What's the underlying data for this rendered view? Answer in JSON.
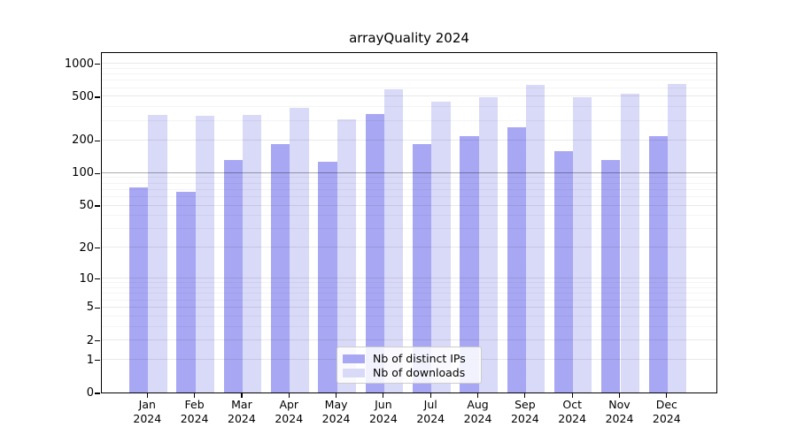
{
  "title": "arrayQuality 2024",
  "colors": {
    "distinct_ips": "#a7a7f3",
    "downloads": "#d9d9f8",
    "grid_minor": "rgba(0,0,0,0.045)",
    "grid_major": "rgba(0,0,0,0.085)",
    "grid_hundred": "rgba(0,0,0,0.32)",
    "axis": "#000000"
  },
  "legend": {
    "items": [
      {
        "label": "Nb of distinct IPs"
      },
      {
        "label": "Nb of downloads"
      }
    ]
  },
  "chart_data": {
    "type": "bar",
    "title": "arrayQuality 2024",
    "categories": [
      "Jan 2024",
      "Feb 2024",
      "Mar 2024",
      "Apr 2024",
      "May 2024",
      "Jun 2024",
      "Jul 2024",
      "Aug 2024",
      "Sep 2024",
      "Oct 2024",
      "Nov 2024",
      "Dec 2024"
    ],
    "series": [
      {
        "name": "Nb of distinct IPs",
        "color": "#a7a7f3",
        "values": [
          73,
          67,
          130,
          184,
          125,
          342,
          184,
          216,
          260,
          157,
          130,
          216
        ]
      },
      {
        "name": "Nb of downloads",
        "color": "#d9d9f8",
        "values": [
          340,
          330,
          338,
          392,
          309,
          576,
          448,
          490,
          641,
          490,
          531,
          653
        ]
      }
    ],
    "xlabel": "",
    "ylabel": "",
    "yscale": "log10(value+1)",
    "yticks": [
      0,
      1,
      2,
      5,
      10,
      20,
      50,
      100,
      200,
      500,
      1000
    ],
    "ylim": [
      0,
      1288
    ],
    "grid": true,
    "emphasized_gridline": 100,
    "legend_position": "lower center"
  }
}
